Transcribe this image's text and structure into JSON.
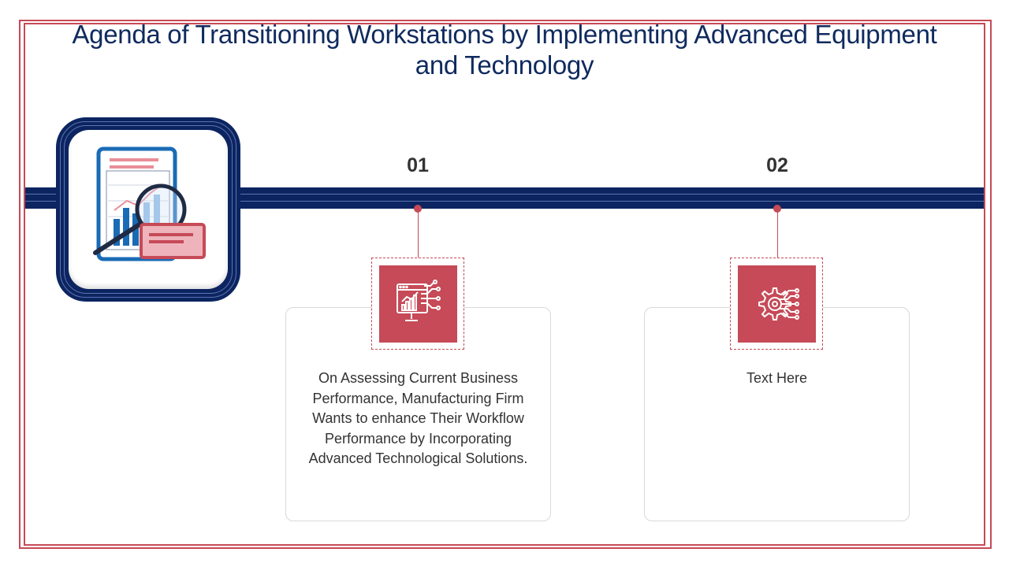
{
  "title": "Agenda of Transitioning Workstations by Implementing Advanced Equipment and Technology",
  "hero": {
    "icon": "report-magnifier-icon"
  },
  "items": [
    {
      "number": "01",
      "icon": "monitor-chart-circuit-icon",
      "text": "On Assessing Current Business Performance, Manufacturing Firm Wants to enhance Their Workflow Performance by Incorporating Advanced Technological Solutions."
    },
    {
      "number": "02",
      "icon": "gear-circuit-icon",
      "text": "Text Here"
    }
  ],
  "colors": {
    "navy": "#0c2561",
    "accent": "#c64a57",
    "title": "#0f2a5e"
  }
}
